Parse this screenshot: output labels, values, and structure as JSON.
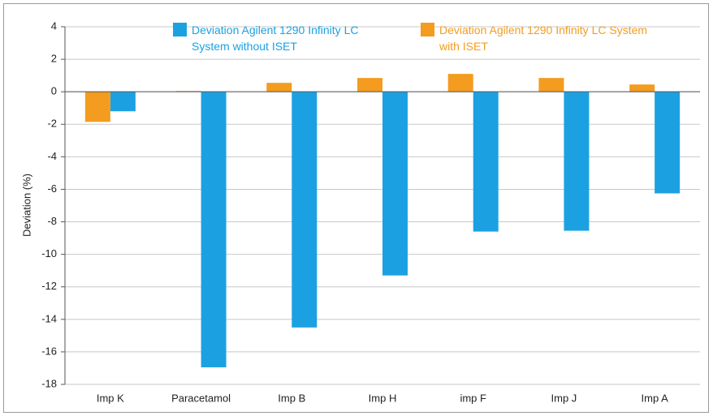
{
  "chart_data": {
    "type": "bar",
    "y_label": "Deviation (%)",
    "categories": [
      "Imp K",
      "Paracetamol",
      "Imp B",
      "Imp H",
      "imp F",
      "Imp J",
      "Imp A"
    ],
    "series": [
      {
        "name": "Deviation Agilent 1290 Infinity LC System without ISET",
        "color": "#1ba1e2",
        "values": [
          -1.2,
          -16.95,
          -14.5,
          -11.3,
          -8.6,
          -8.55,
          -6.25
        ]
      },
      {
        "name": "Deviation Agilent 1290 Infinity LC System with ISET",
        "color": "#f39c1f",
        "values": [
          -1.85,
          0.05,
          0.55,
          0.85,
          1.1,
          0.85,
          0.45
        ]
      }
    ],
    "ylim": [
      -18,
      4
    ],
    "yticks": [
      -18,
      -16,
      -14,
      -12,
      -10,
      -8,
      -6,
      -4,
      -2,
      0,
      2,
      4
    ],
    "grid": true
  }
}
